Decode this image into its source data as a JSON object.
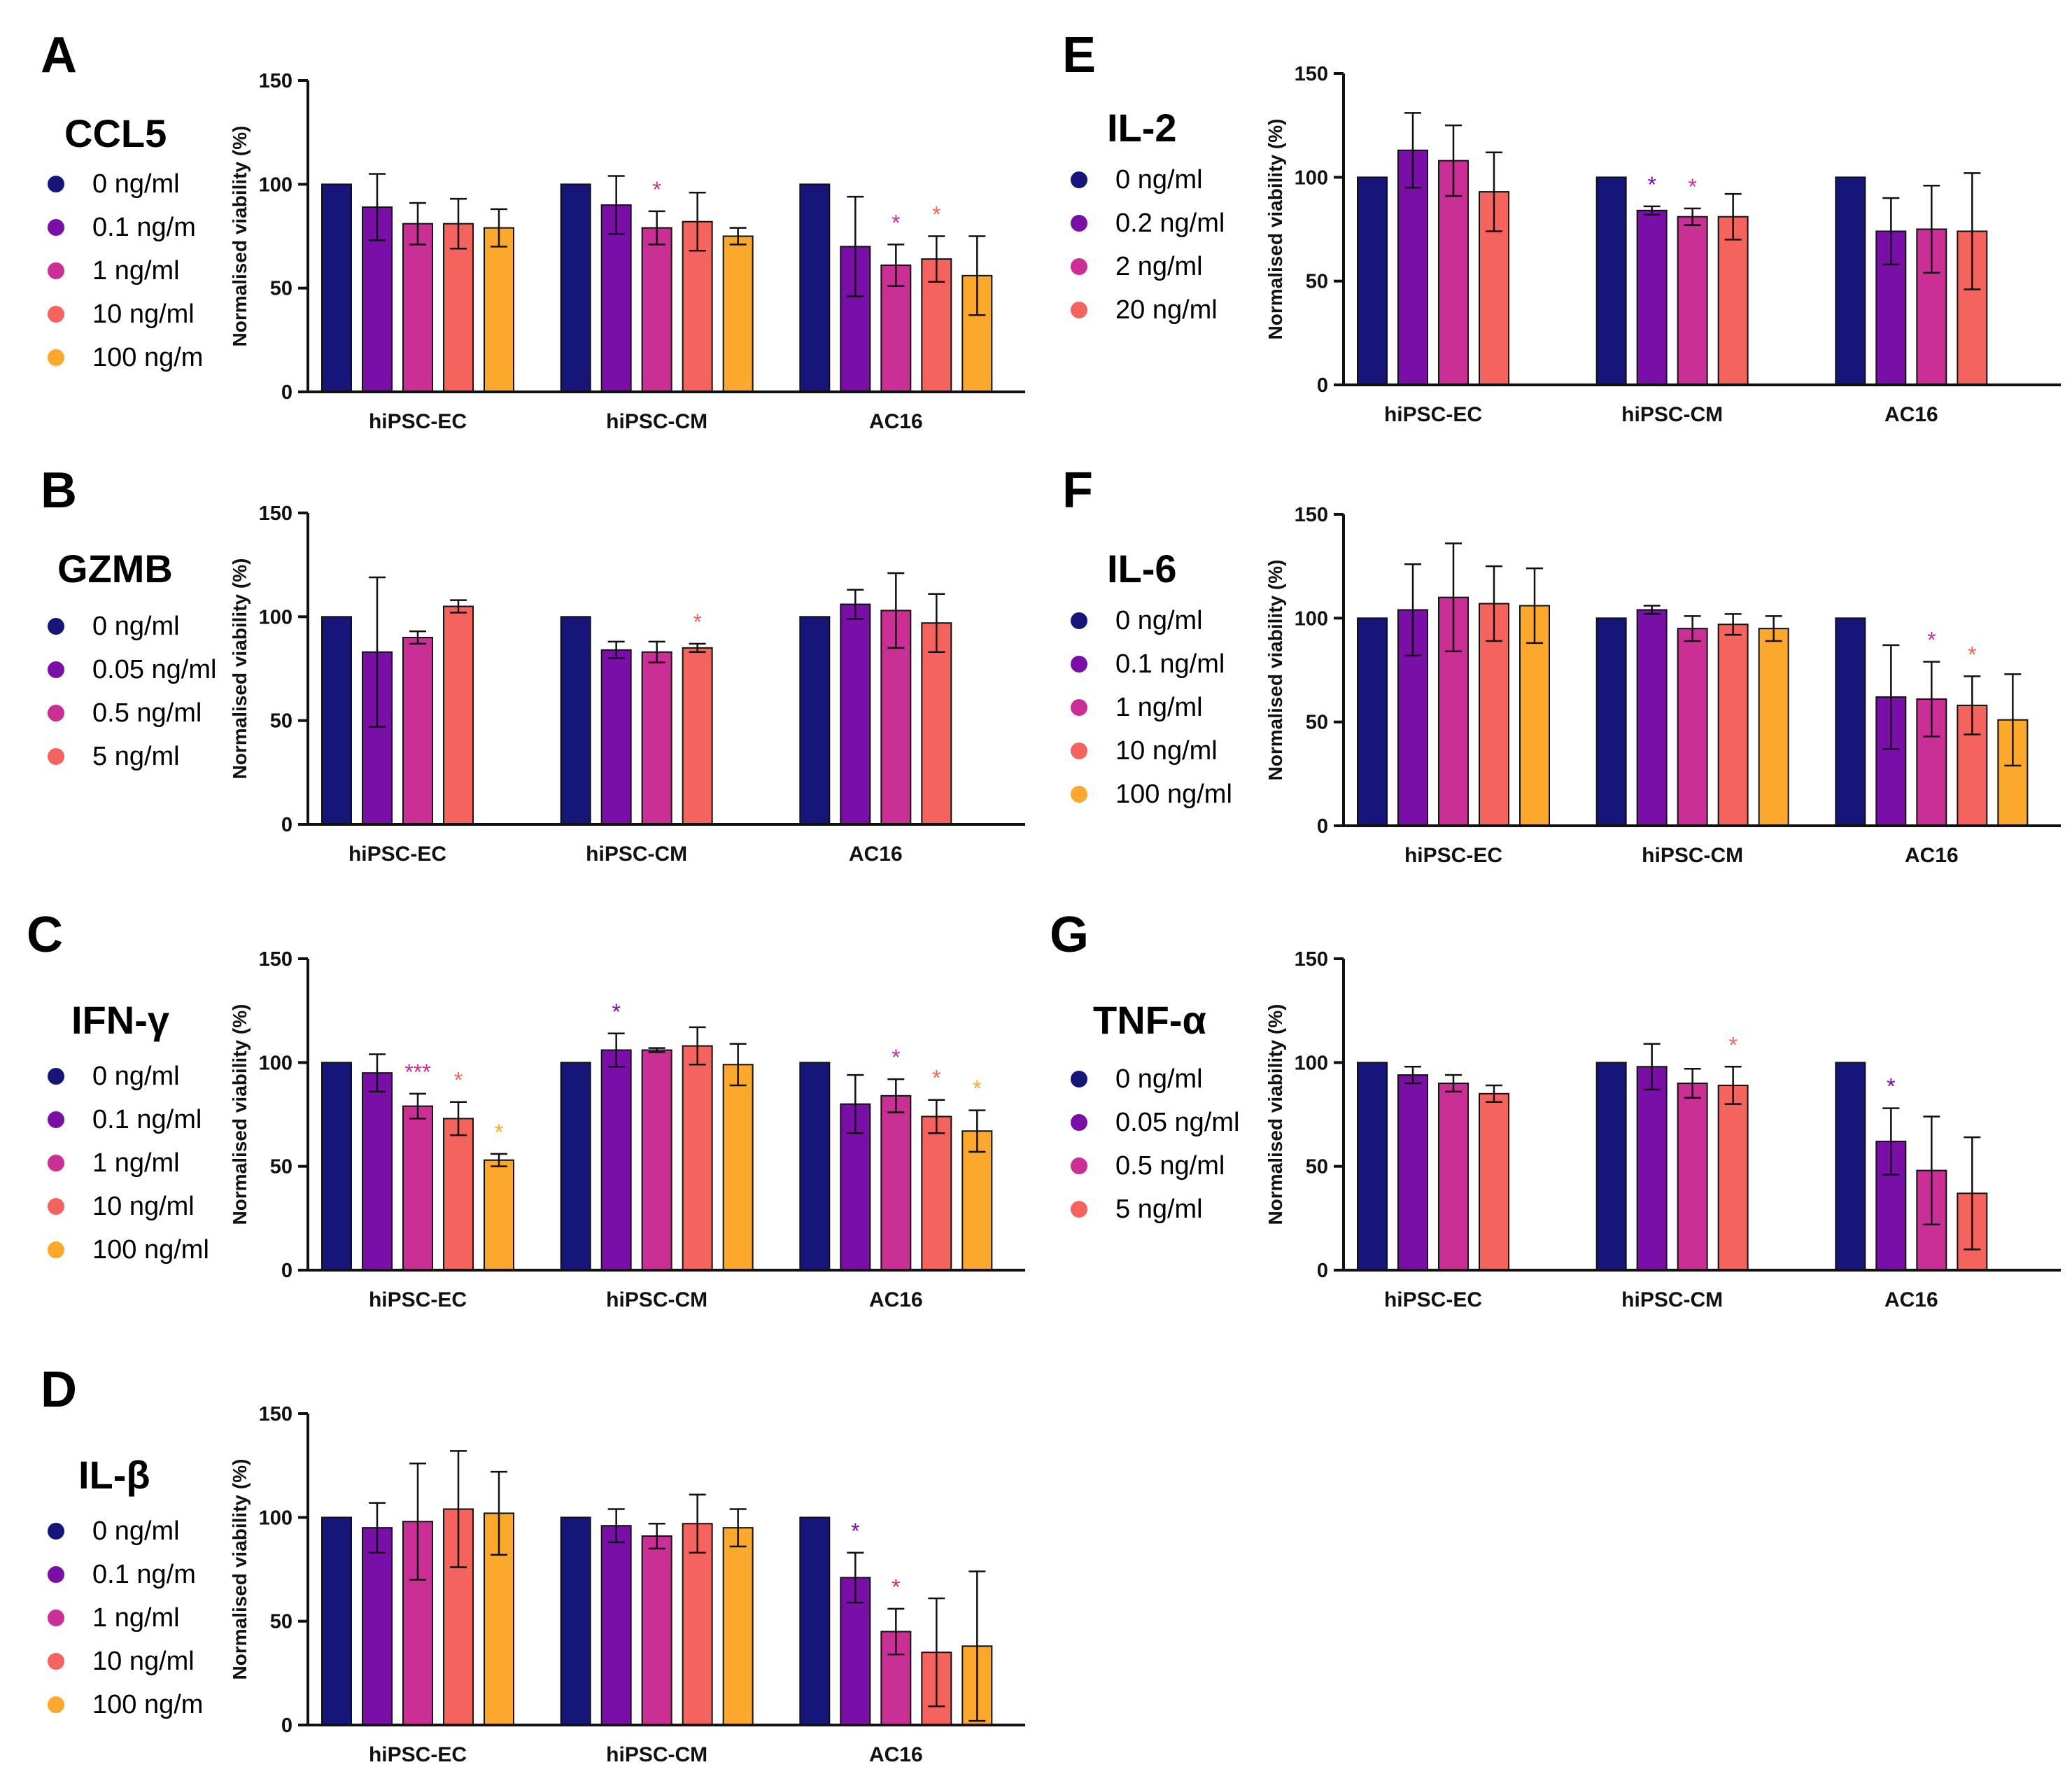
{
  "figure": {
    "y_axis_label": "Normalised viability (%)"
  },
  "palette": {
    "navy": "#15157a",
    "purple": "#7a0fa8",
    "magenta": "#c92f95",
    "salmon": "#f5635f",
    "orange": "#fba82c",
    "axis": "#111111"
  },
  "chart_data": [
    {
      "id": "A",
      "letter": "A",
      "title": "CCL5",
      "type": "bar",
      "legend": [
        "0 ng/ml",
        "0.1 ng/m",
        "1 ng/ml",
        "10 ng/ml",
        "100 ng/m"
      ],
      "colors": [
        "navy",
        "purple",
        "magenta",
        "salmon",
        "orange"
      ],
      "categories": [
        "hiPSC-EC",
        "hiPSC-CM",
        "AC16"
      ],
      "ylim": [
        0,
        150
      ],
      "yticks": [
        0,
        50,
        100,
        150
      ],
      "ylabel": "Normalised viability (%)",
      "series": [
        {
          "name": "0 ng/ml",
          "values": [
            100,
            100,
            100
          ],
          "err": [
            0,
            0,
            0
          ]
        },
        {
          "name": "0.1 ng/m",
          "values": [
            89,
            90,
            70
          ],
          "err": [
            16,
            14,
            24
          ]
        },
        {
          "name": "1 ng/ml",
          "values": [
            81,
            79,
            61
          ],
          "err": [
            10,
            8,
            10
          ]
        },
        {
          "name": "10 ng/ml",
          "values": [
            81,
            82,
            64
          ],
          "err": [
            12,
            14,
            11
          ]
        },
        {
          "name": "100 ng/m",
          "values": [
            79,
            75,
            56
          ],
          "err": [
            9,
            4,
            19
          ]
        }
      ],
      "sig": [
        [
          "",
          "",
          ""
        ],
        [
          "",
          "",
          ""
        ],
        [
          "",
          "*",
          "*"
        ],
        [
          "",
          "",
          "*"
        ],
        [
          "",
          "",
          ""
        ]
      ]
    },
    {
      "id": "B",
      "letter": "B",
      "title": "GZMB",
      "type": "bar",
      "legend": [
        "0 ng/ml",
        "0.05 ng/ml",
        "0.5 ng/ml",
        "5 ng/ml"
      ],
      "colors": [
        "navy",
        "purple",
        "magenta",
        "salmon"
      ],
      "categories": [
        "hiPSC-EC",
        "hiPSC-CM",
        "AC16"
      ],
      "ylim": [
        0,
        150
      ],
      "yticks": [
        0,
        50,
        100,
        150
      ],
      "ylabel": "Normalised viability (%)",
      "series": [
        {
          "name": "0 ng/ml",
          "values": [
            100,
            100,
            100
          ],
          "err": [
            0,
            0,
            0
          ]
        },
        {
          "name": "0.05 ng/ml",
          "values": [
            83,
            84,
            106
          ],
          "err": [
            36,
            4,
            7
          ]
        },
        {
          "name": "0.5 ng/ml",
          "values": [
            90,
            83,
            103
          ],
          "err": [
            3,
            5,
            18
          ]
        },
        {
          "name": "5 ng/ml",
          "values": [
            105,
            85,
            97
          ],
          "err": [
            3,
            2,
            14
          ]
        }
      ],
      "sig": [
        [
          "",
          "",
          ""
        ],
        [
          "",
          "",
          ""
        ],
        [
          "",
          "",
          ""
        ],
        [
          "",
          "*",
          ""
        ]
      ]
    },
    {
      "id": "C",
      "letter": "C",
      "title": "IFN-γ",
      "type": "bar",
      "legend": [
        "0 ng/ml",
        "0.1 ng/ml",
        "1 ng/ml",
        "10 ng/ml",
        "100 ng/ml"
      ],
      "colors": [
        "navy",
        "purple",
        "magenta",
        "salmon",
        "orange"
      ],
      "categories": [
        "hiPSC-EC",
        "hiPSC-CM",
        "AC16"
      ],
      "ylim": [
        0,
        150
      ],
      "yticks": [
        0,
        50,
        100,
        150
      ],
      "ylabel": "Normalised viability (%)",
      "series": [
        {
          "name": "0 ng/ml",
          "values": [
            100,
            100,
            100
          ],
          "err": [
            0,
            0,
            0
          ]
        },
        {
          "name": "0.1 ng/ml",
          "values": [
            95,
            106,
            80
          ],
          "err": [
            9,
            8,
            14
          ]
        },
        {
          "name": "1 ng/ml",
          "values": [
            79,
            106,
            84
          ],
          "err": [
            6,
            1,
            8
          ]
        },
        {
          "name": "10 ng/ml",
          "values": [
            73,
            108,
            74
          ],
          "err": [
            8,
            9,
            8
          ]
        },
        {
          "name": "100 ng/ml",
          "values": [
            53,
            99,
            67
          ],
          "err": [
            3,
            10,
            10
          ]
        }
      ],
      "sig": [
        [
          "",
          "",
          ""
        ],
        [
          "",
          "*",
          ""
        ],
        [
          "***",
          "",
          "*"
        ],
        [
          "*",
          "",
          "*"
        ],
        [
          "*",
          "",
          "*"
        ]
      ]
    },
    {
      "id": "D",
      "letter": "D",
      "title": "IL-β",
      "type": "bar",
      "legend": [
        "0 ng/ml",
        "0.1 ng/m",
        "1 ng/ml",
        "10 ng/ml",
        "100 ng/m"
      ],
      "colors": [
        "navy",
        "purple",
        "magenta",
        "salmon",
        "orange"
      ],
      "categories": [
        "hiPSC-EC",
        "hiPSC-CM",
        "AC16"
      ],
      "ylim": [
        0,
        150
      ],
      "yticks": [
        0,
        50,
        100,
        150
      ],
      "ylabel": "Normalised viability (%)",
      "series": [
        {
          "name": "0 ng/ml",
          "values": [
            100,
            100,
            100
          ],
          "err": [
            0,
            0,
            0
          ]
        },
        {
          "name": "0.1 ng/m",
          "values": [
            95,
            96,
            71
          ],
          "err": [
            12,
            8,
            12
          ]
        },
        {
          "name": "1 ng/ml",
          "values": [
            98,
            91,
            45
          ],
          "err": [
            28,
            6,
            11
          ]
        },
        {
          "name": "10 ng/ml",
          "values": [
            104,
            97,
            35
          ],
          "err": [
            28,
            14,
            26
          ]
        },
        {
          "name": "100 ng/m",
          "values": [
            102,
            95,
            38
          ],
          "err": [
            20,
            9,
            36
          ]
        }
      ],
      "sig": [
        [
          "",
          "",
          ""
        ],
        [
          "",
          "",
          "*"
        ],
        [
          "",
          "",
          "*"
        ],
        [
          "",
          "",
          ""
        ],
        [
          "",
          "",
          ""
        ]
      ]
    },
    {
      "id": "E",
      "letter": "E",
      "title": "IL-2",
      "type": "bar",
      "legend": [
        "0 ng/ml",
        "0.2 ng/ml",
        "2 ng/ml",
        "20 ng/ml"
      ],
      "colors": [
        "navy",
        "purple",
        "magenta",
        "salmon"
      ],
      "categories": [
        "hiPSC-EC",
        "hiPSC-CM",
        "AC16"
      ],
      "ylim": [
        0,
        150
      ],
      "yticks": [
        0,
        50,
        100,
        150
      ],
      "ylabel": "Normalised viability (%)",
      "series": [
        {
          "name": "0 ng/ml",
          "values": [
            100,
            100,
            100
          ],
          "err": [
            0,
            0,
            0
          ]
        },
        {
          "name": "0.2 ng/ml",
          "values": [
            113,
            84,
            74
          ],
          "err": [
            18,
            2,
            16
          ]
        },
        {
          "name": "2 ng/ml",
          "values": [
            108,
            81,
            75
          ],
          "err": [
            17,
            4,
            21
          ]
        },
        {
          "name": "20 ng/ml",
          "values": [
            93,
            81,
            74
          ],
          "err": [
            19,
            11,
            28
          ]
        }
      ],
      "sig": [
        [
          "",
          "",
          ""
        ],
        [
          "",
          "*",
          ""
        ],
        [
          "",
          "*",
          ""
        ],
        [
          "",
          "",
          ""
        ]
      ]
    },
    {
      "id": "F",
      "letter": "F",
      "title": "IL-6",
      "type": "bar",
      "legend": [
        "0 ng/ml",
        "0.1 ng/ml",
        "1 ng/ml",
        "10 ng/ml",
        "100 ng/ml"
      ],
      "colors": [
        "navy",
        "purple",
        "magenta",
        "salmon",
        "orange"
      ],
      "categories": [
        "hiPSC-EC",
        "hiPSC-CM",
        "AC16"
      ],
      "ylim": [
        0,
        150
      ],
      "yticks": [
        0,
        50,
        100,
        150
      ],
      "ylabel": "Normalised viability (%)",
      "series": [
        {
          "name": "0 ng/ml",
          "values": [
            100,
            100,
            100
          ],
          "err": [
            0,
            0,
            0
          ]
        },
        {
          "name": "0.1 ng/ml",
          "values": [
            104,
            104,
            62
          ],
          "err": [
            22,
            2,
            25
          ]
        },
        {
          "name": "1 ng/ml",
          "values": [
            110,
            95,
            61
          ],
          "err": [
            26,
            6,
            18
          ]
        },
        {
          "name": "10 ng/ml",
          "values": [
            107,
            97,
            58
          ],
          "err": [
            18,
            5,
            14
          ]
        },
        {
          "name": "100 ng/ml",
          "values": [
            106,
            95,
            51
          ],
          "err": [
            18,
            6,
            22
          ]
        }
      ],
      "sig": [
        [
          "",
          "",
          ""
        ],
        [
          "",
          "",
          ""
        ],
        [
          "",
          "",
          "*"
        ],
        [
          "",
          "",
          "*"
        ],
        [
          "",
          "",
          ""
        ]
      ]
    },
    {
      "id": "G",
      "letter": "G",
      "title": "TNF-α",
      "type": "bar",
      "legend": [
        "0 ng/ml",
        "0.05 ng/ml",
        "0.5 ng/ml",
        "5 ng/ml"
      ],
      "colors": [
        "navy",
        "purple",
        "magenta",
        "salmon"
      ],
      "categories": [
        "hiPSC-EC",
        "hiPSC-CM",
        "AC16"
      ],
      "ylim": [
        0,
        150
      ],
      "yticks": [
        0,
        50,
        100,
        150
      ],
      "ylabel": "Normalised viability (%)",
      "series": [
        {
          "name": "0 ng/ml",
          "values": [
            100,
            100,
            100
          ],
          "err": [
            0,
            0,
            0
          ]
        },
        {
          "name": "0.05 ng/ml",
          "values": [
            94,
            98,
            62
          ],
          "err": [
            4,
            11,
            16
          ]
        },
        {
          "name": "0.5 ng/ml",
          "values": [
            90,
            90,
            48
          ],
          "err": [
            4,
            7,
            26
          ]
        },
        {
          "name": "5 ng/ml",
          "values": [
            85,
            89,
            37
          ],
          "err": [
            4,
            9,
            27
          ]
        }
      ],
      "sig": [
        [
          "",
          "",
          ""
        ],
        [
          "",
          "",
          "*"
        ],
        [
          "",
          "",
          ""
        ],
        [
          "",
          "*",
          ""
        ]
      ]
    }
  ]
}
